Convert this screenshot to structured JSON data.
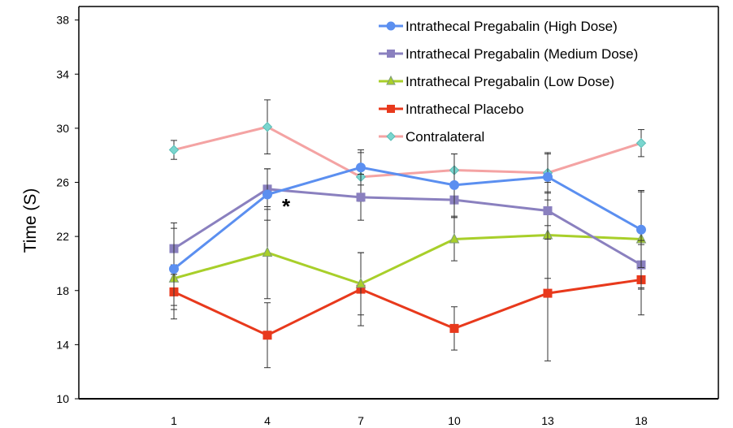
{
  "chart_data": {
    "type": "line",
    "ylabel": "Time (S)",
    "xlabel": "",
    "title": "",
    "categories": [
      "1",
      "4",
      "7",
      "10",
      "13",
      "18"
    ],
    "ylim": [
      10,
      39
    ],
    "yticks": [
      10,
      14,
      18,
      22,
      26,
      30,
      34,
      38
    ],
    "grid": false,
    "legend_position": "top-right",
    "annotation": {
      "text": "*",
      "category": "4"
    },
    "series": [
      {
        "name": "Intrathecal Pregabalin (High Dose)",
        "color": "#5b8ff0",
        "marker": "circle",
        "values": [
          19.6,
          25.1,
          27.1,
          25.8,
          26.4,
          22.5
        ],
        "error": [
          3.0,
          1.9,
          1.3,
          2.3,
          1.7,
          2.8
        ]
      },
      {
        "name": "Intrathecal Pregabalin (Medium Dose)",
        "color": "#8a80bf",
        "marker": "square",
        "values": [
          21.1,
          25.5,
          24.9,
          24.7,
          23.9,
          19.9
        ],
        "error": [
          1.9,
          1.5,
          1.7,
          1.3,
          2.1,
          1.8
        ]
      },
      {
        "name": "Intrathecal Pregabalin (Low Dose)",
        "color": "#a8cf2a",
        "marker": "triangle",
        "values": [
          18.9,
          20.8,
          18.5,
          21.8,
          22.1,
          21.8
        ],
        "error": [
          2.0,
          3.4,
          2.3,
          1.6,
          3.2,
          3.6
        ]
      },
      {
        "name": "Intrathecal Placebo",
        "color": "#e8391c",
        "marker": "square",
        "values": [
          17.9,
          14.7,
          18.1,
          15.2,
          17.8,
          18.8
        ],
        "error": [
          2.0,
          2.4,
          2.7,
          1.6,
          5.0,
          2.6
        ]
      },
      {
        "name": "Contralateral",
        "color": "#f4a3a3",
        "marker": "diamond",
        "marker_color": "#7ad6cf",
        "values": [
          28.4,
          30.1,
          26.4,
          26.9,
          26.7,
          28.9
        ],
        "error": [
          0.7,
          2.0,
          1.8,
          1.2,
          1.5,
          1.0
        ]
      }
    ]
  }
}
